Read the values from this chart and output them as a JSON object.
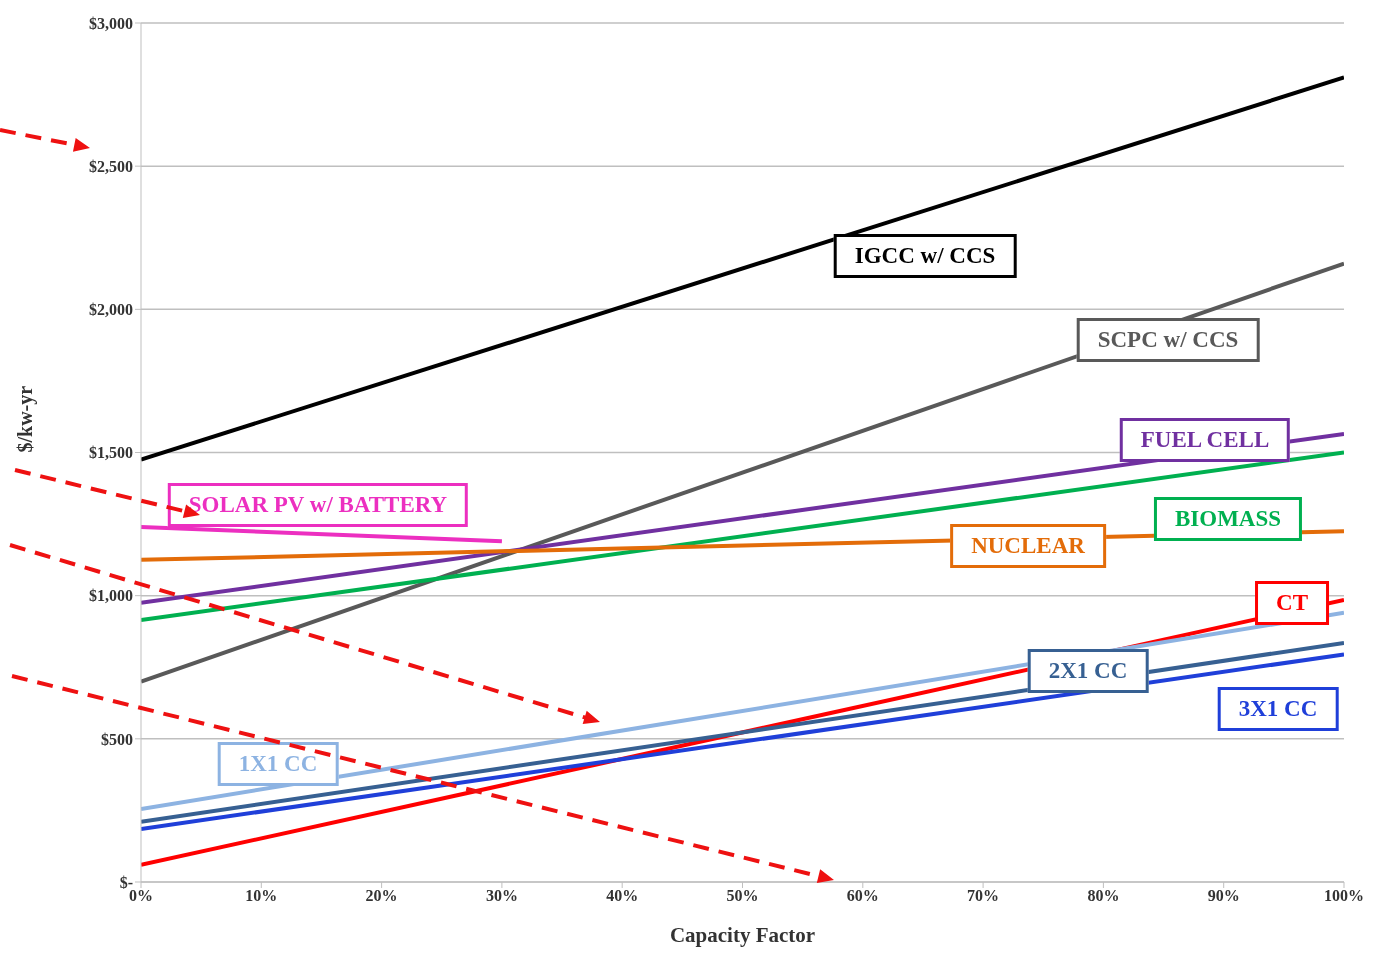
{
  "chart_data": {
    "type": "line",
    "xlabel": "Capacity Factor",
    "ylabel": "$/kw-yr",
    "xlim": [
      0,
      100
    ],
    "ylim": [
      0,
      3000
    ],
    "xticks": [
      {
        "value": 0,
        "label": "0%"
      },
      {
        "value": 10,
        "label": "10%"
      },
      {
        "value": 20,
        "label": "20%"
      },
      {
        "value": 30,
        "label": "30%"
      },
      {
        "value": 40,
        "label": "40%"
      },
      {
        "value": 50,
        "label": "50%"
      },
      {
        "value": 60,
        "label": "60%"
      },
      {
        "value": 70,
        "label": "70%"
      },
      {
        "value": 80,
        "label": "80%"
      },
      {
        "value": 90,
        "label": "90%"
      },
      {
        "value": 100,
        "label": "100%"
      }
    ],
    "yticks": [
      {
        "value": 0,
        "label": "$-"
      },
      {
        "value": 500,
        "label": "$500"
      },
      {
        "value": 1000,
        "label": "$1,000"
      },
      {
        "value": 1500,
        "label": "$1,500"
      },
      {
        "value": 2000,
        "label": "$2,000"
      },
      {
        "value": 2500,
        "label": "$2,500"
      },
      {
        "value": 3000,
        "label": "$3,000"
      }
    ],
    "grid": "y",
    "marker": "none",
    "line_style": "solid",
    "series": [
      {
        "name": "IGCC w/ CCS",
        "color": "#000000",
        "x": [
          0,
          100
        ],
        "values": [
          1475,
          2810
        ]
      },
      {
        "name": "SCPC w/ CCS",
        "color": "#595959",
        "x": [
          0,
          100
        ],
        "values": [
          700,
          2160
        ]
      },
      {
        "name": "FUEL CELL",
        "color": "#7030a0",
        "x": [
          0,
          100
        ],
        "values": [
          975,
          1565
        ]
      },
      {
        "name": "BIOMASS",
        "color": "#00b050",
        "x": [
          0,
          100
        ],
        "values": [
          915,
          1500
        ]
      },
      {
        "name": "NUCLEAR",
        "color": "#e36c09",
        "x": [
          0,
          100
        ],
        "values": [
          1125,
          1225
        ]
      },
      {
        "name": "SOLAR PV w/ BATTERY",
        "color": "#ec2fc0",
        "x": [
          0,
          30
        ],
        "values": [
          1240,
          1190
        ]
      },
      {
        "name": "CT",
        "color": "#ff0000",
        "x": [
          0,
          100
        ],
        "values": [
          60,
          985
        ]
      },
      {
        "name": "1X1 CC",
        "color": "#8db3e2",
        "x": [
          0,
          100
        ],
        "values": [
          255,
          940
        ]
      },
      {
        "name": "2X1 CC",
        "color": "#376092",
        "x": [
          0,
          100
        ],
        "values": [
          210,
          835
        ]
      },
      {
        "name": "3X1 CC",
        "color": "#1f3fd9",
        "x": [
          0,
          100
        ],
        "values": [
          185,
          795
        ]
      }
    ]
  }
}
